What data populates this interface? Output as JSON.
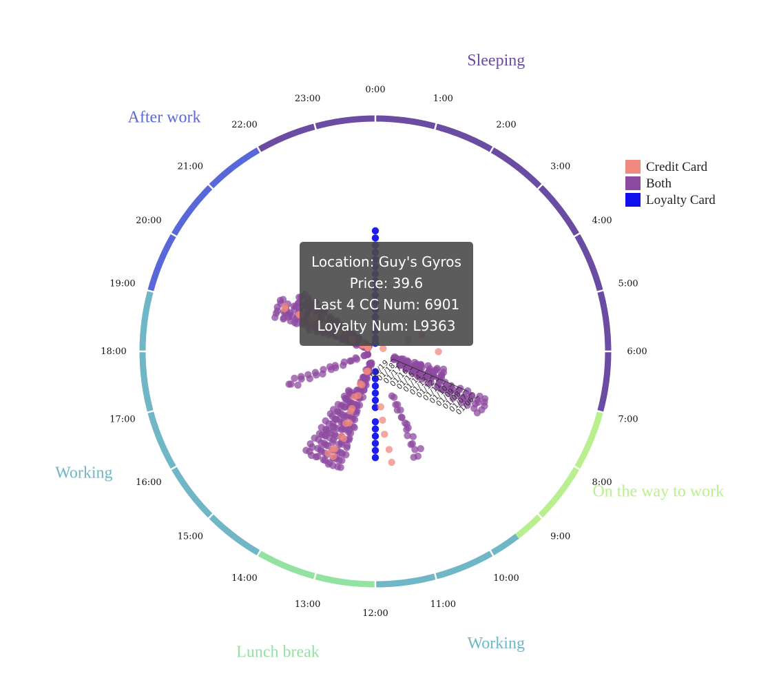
{
  "chart_data": {
    "type": "scatter",
    "layout": "radial-24h-clock",
    "hours": [
      "0:00",
      "1:00",
      "2:00",
      "3:00",
      "4:00",
      "5:00",
      "6:00",
      "7:00",
      "8:00",
      "9:00",
      "10:00",
      "11:00",
      "12:00",
      "13:00",
      "14:00",
      "15:00",
      "16:00",
      "17:00",
      "18:00",
      "19:00",
      "20:00",
      "21:00",
      "22:00",
      "23:00"
    ],
    "phases": [
      {
        "name": "Sleeping",
        "start": 22,
        "end": 31,
        "color": "#6a4ca2",
        "label_hour": 1.5
      },
      {
        "name": "On the way to work",
        "start": 7,
        "end": 9.5,
        "color": "#b9ef8f",
        "label_hour": 7.75
      },
      {
        "name": "Working",
        "start": 9.5,
        "end": 12,
        "color": "#6fb6c6",
        "label_hour": 10.5
      },
      {
        "name": "Lunch break",
        "start": 12,
        "end": 14,
        "color": "#93e2a1",
        "label_hour": 13.2
      },
      {
        "name": "Working",
        "start": 14,
        "end": 19,
        "color": "#6fb6c6",
        "label_hour": 16.5
      },
      {
        "name": "After work",
        "start": 19,
        "end": 22,
        "color": "#5968d9",
        "label_hour": 21.2
      }
    ],
    "dates": [
      "01/06",
      "01/07",
      "01/08",
      "01/09",
      "01/10",
      "01/11",
      "01/12",
      "01/13",
      "01/14",
      "01/15",
      "01/16",
      "01/17",
      "01/18",
      "01/19"
    ],
    "legend": [
      {
        "name": "Credit Card",
        "color": "#f08a80"
      },
      {
        "name": "Both",
        "color": "#8e4aa0"
      },
      {
        "name": "Loyalty Card",
        "color": "#1010ee"
      }
    ],
    "point_colors": {
      "Credit Card": "#f08a80",
      "Both": "#8e4aa0",
      "Loyalty Card": "#1111ee"
    },
    "clusters": [
      {
        "type": "Loyalty Card",
        "hour": 0.0,
        "dates": [
          0,
          1,
          2,
          3,
          4,
          5,
          6,
          7,
          8,
          9,
          10,
          11,
          12,
          13,
          14,
          15,
          16,
          17,
          18,
          19,
          20
        ],
        "jitter": 0,
        "spread": 0
      },
      {
        "type": "Loyalty Card",
        "hour": 12.0,
        "dates": [
          2,
          3,
          4,
          5,
          6,
          7,
          9,
          10,
          11,
          12,
          13,
          14
        ],
        "jitter": 0,
        "spread": 0
      },
      {
        "type": "Both",
        "hour": 7.8,
        "dates": [
          0,
          1,
          2,
          3,
          4,
          5,
          6,
          7,
          8,
          9,
          10,
          11,
          12,
          13
        ],
        "jitter": 0.35,
        "spread": 5
      },
      {
        "type": "Both",
        "hour": 7.3,
        "dates": [
          7,
          8,
          9,
          10,
          11,
          12,
          13,
          14
        ],
        "jitter": 0.35,
        "spread": 6
      },
      {
        "type": "Both",
        "hour": 13.4,
        "dates": [
          0,
          1,
          2,
          3,
          4,
          5,
          6,
          7,
          8,
          9,
          10,
          11,
          12,
          13,
          14,
          15
        ],
        "jitter": 0.45,
        "spread": 7
      },
      {
        "type": "Both",
        "hour": 14.1,
        "dates": [
          0,
          1,
          2,
          3,
          4,
          5,
          6,
          7,
          8,
          9,
          10
        ],
        "jitter": 0.35,
        "spread": 5
      },
      {
        "type": "Both",
        "hour": 19.6,
        "dates": [
          2,
          3,
          4,
          5,
          6,
          7,
          8,
          9,
          10,
          11,
          12,
          13,
          14,
          15,
          16
        ],
        "jitter": 0.45,
        "spread": 7
      },
      {
        "type": "Both",
        "hour": 20.3,
        "dates": [
          4,
          5,
          6,
          7,
          8,
          9,
          10,
          11,
          12,
          13,
          14,
          15,
          16,
          17
        ],
        "jitter": 0.4,
        "spread": 6
      },
      {
        "type": "Both",
        "hour": 16.6,
        "dates": [
          4,
          5,
          6,
          7,
          8,
          9,
          10,
          11,
          12,
          13,
          14,
          15,
          16,
          17
        ],
        "jitter": 0.7,
        "spread": 2
      },
      {
        "type": "Both",
        "hour": 10.5,
        "dates": [
          1,
          2,
          3,
          4,
          5,
          6,
          7,
          8,
          9,
          10
        ],
        "jitter": 0.6,
        "spread": 2
      },
      {
        "type": "Credit Card",
        "hour": 13.5,
        "dates": [
          1,
          2,
          4,
          6,
          8,
          10,
          12,
          14
        ],
        "jitter": 0.6,
        "spread": 2
      },
      {
        "type": "Credit Card",
        "hour": 19.8,
        "dates": [
          3,
          5,
          7,
          9,
          11,
          13,
          15,
          17,
          19
        ],
        "jitter": 0.7,
        "spread": 2
      },
      {
        "type": "Credit Card",
        "hour": 11.5,
        "dates": [
          1,
          3,
          5,
          7,
          9
        ],
        "jitter": 0.8,
        "spread": 1
      },
      {
        "type": "Credit Card",
        "hour": 4.7,
        "dates": [
          10,
          12,
          17
        ],
        "jitter": 0.3,
        "spread": 1
      },
      {
        "type": "Credit Card",
        "hour": 6.0,
        "dates": [
          8
        ],
        "jitter": 0.1,
        "spread": 1
      }
    ]
  },
  "tooltip": {
    "location": "Location: Guy's Gyros",
    "price": "Price: 39.6",
    "cc_num": "Last 4 CC Num: 6901",
    "loyalty_num": "Loyalty Num: L9363"
  }
}
